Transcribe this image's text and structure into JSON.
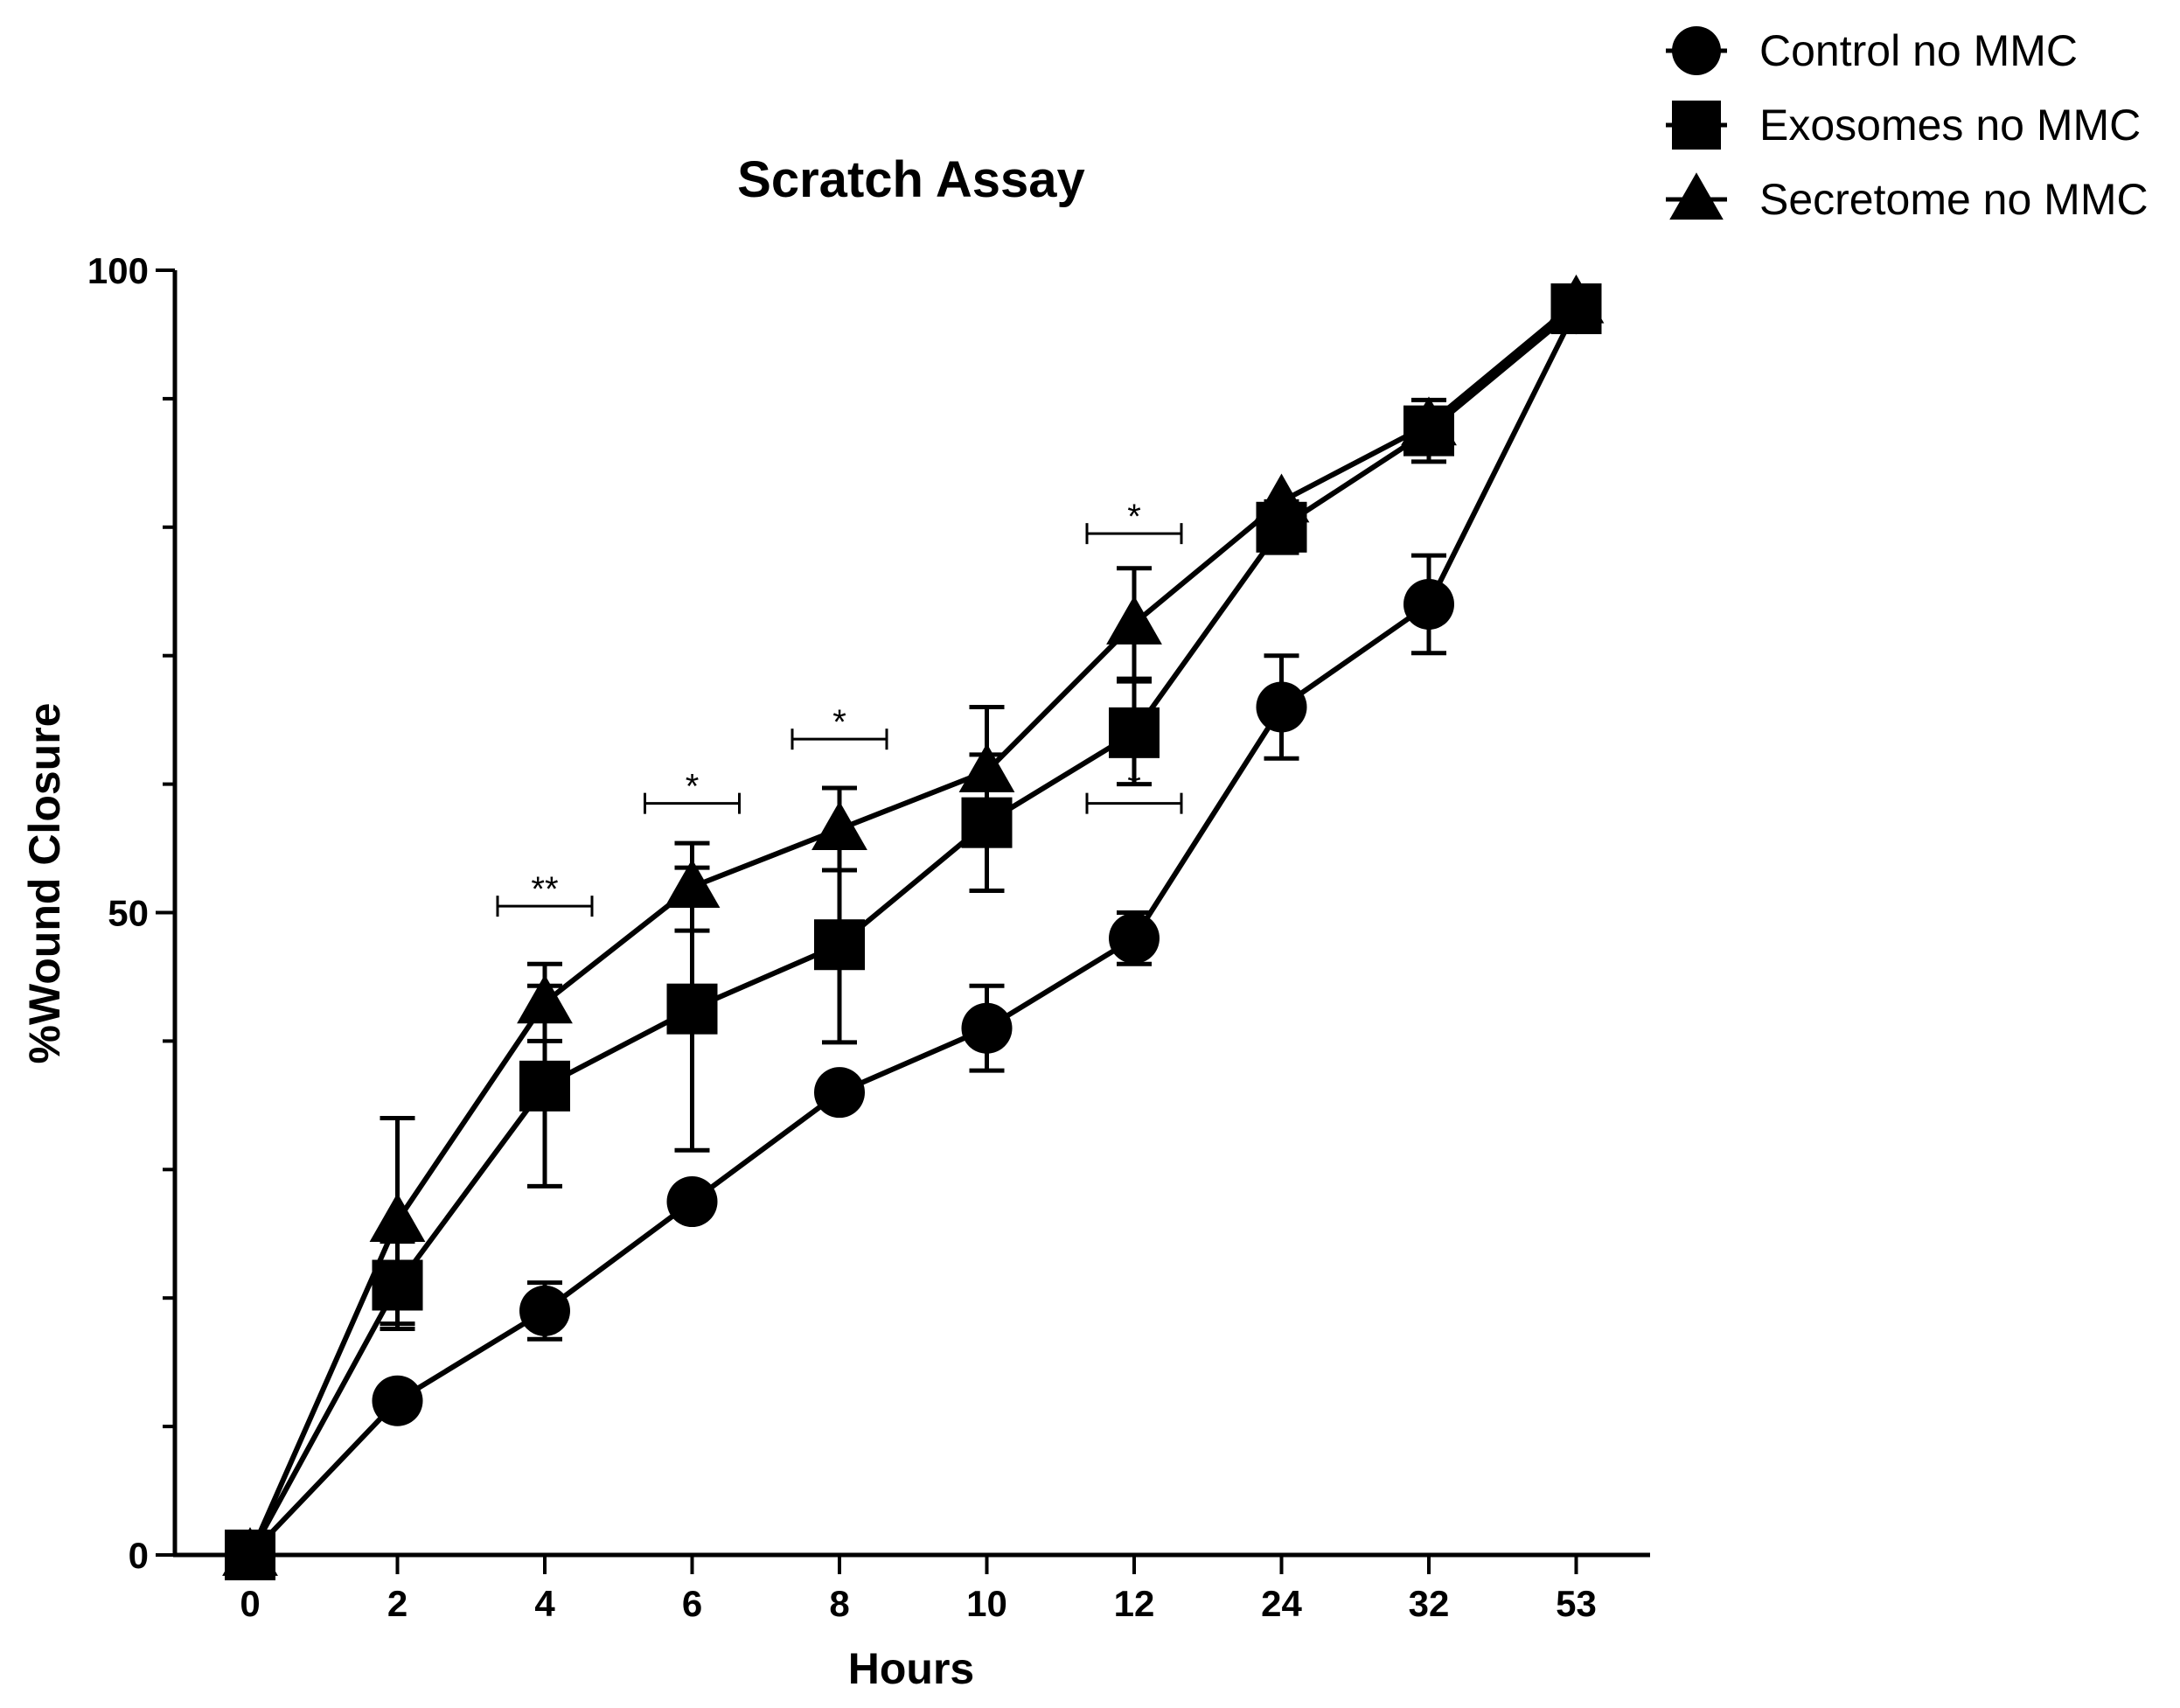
{
  "chart_data": {
    "type": "line",
    "title": "Scratch Assay",
    "xlabel": "Hours",
    "ylabel": "%Wound Closure",
    "categories": [
      "0",
      "2",
      "4",
      "6",
      "8",
      "10",
      "12",
      "24",
      "32",
      "53"
    ],
    "ylim": [
      0,
      100
    ],
    "yticks": [
      "0",
      "50",
      "100"
    ],
    "legend_position": "top-right",
    "grid": false,
    "series": [
      {
        "name": "Control no MMC",
        "marker": "circle",
        "values": [
          0,
          12,
          19,
          27.5,
          36,
          41,
          48,
          66,
          74,
          97
        ],
        "errors": [
          0,
          0,
          2.2,
          0,
          0,
          3.3,
          2,
          4,
          3.8,
          0
        ]
      },
      {
        "name": "Exosomes no MMC",
        "marker": "square",
        "values": [
          0,
          21,
          36.5,
          42.5,
          47.5,
          57,
          64,
          80,
          87.5,
          97
        ],
        "errors": [
          0,
          3.4,
          7.8,
          11,
          7.6,
          5.3,
          4,
          2,
          2.4,
          0
        ]
      },
      {
        "name": "Secretome no MMC",
        "marker": "triangle",
        "values": [
          0,
          26,
          43,
          52,
          56.5,
          61,
          72.5,
          82,
          88,
          97.5
        ],
        "errors": [
          0,
          8,
          3,
          3.4,
          3.2,
          5,
          4.3,
          0,
          0,
          0
        ]
      }
    ],
    "significance": [
      {
        "category": "4",
        "label": "**",
        "y": 50.5
      },
      {
        "category": "6",
        "label": "*",
        "y": 58.5
      },
      {
        "category": "8",
        "label": "*",
        "y": 63.5
      },
      {
        "category": "12",
        "label": "*",
        "y": 79.5
      },
      {
        "category": "12",
        "label": "*",
        "y": 58.5
      }
    ]
  }
}
